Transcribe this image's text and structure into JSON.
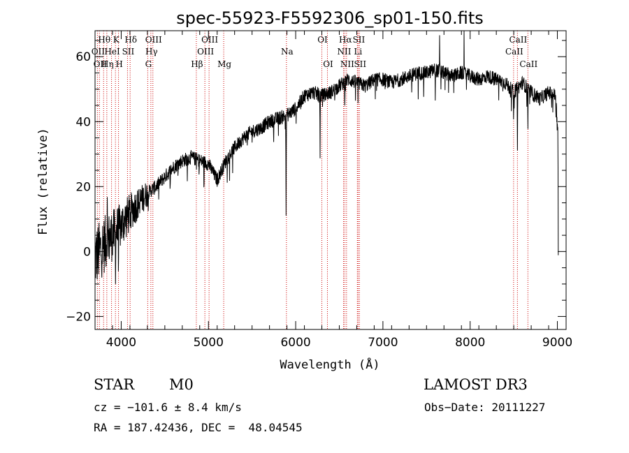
{
  "chart_data": {
    "type": "line",
    "title": "spec-55923-F5592306_sp01-150.fits",
    "xlabel": "Wavelength (Å)",
    "ylabel": "Flux (relative)",
    "xlim": [
      3700,
      9100
    ],
    "ylim": [
      -24,
      68
    ],
    "x_ticks": [
      4000,
      5000,
      6000,
      7000,
      8000,
      9000
    ],
    "y_ticks": [
      -20,
      0,
      20,
      40,
      60
    ],
    "grid": false,
    "line_color": "#000000",
    "marker_color": "#cc0000",
    "spectrum_anchors": {
      "x": [
        3700,
        3800,
        3900,
        4000,
        4100,
        4200,
        4300,
        4400,
        4500,
        4600,
        4700,
        4800,
        4900,
        5000,
        5100,
        5200,
        5300,
        5400,
        5500,
        5600,
        5700,
        5800,
        5900,
        6000,
        6100,
        6200,
        6300,
        6400,
        6500,
        6600,
        6700,
        6800,
        6900,
        7000,
        7100,
        7200,
        7300,
        7400,
        7500,
        7600,
        7700,
        7800,
        7900,
        8000,
        8100,
        8200,
        8300,
        8400,
        8500,
        8600,
        8700,
        8800,
        8900,
        8980,
        9000
      ],
      "y": [
        -2,
        2,
        5,
        8,
        12,
        15,
        18,
        20,
        23,
        26,
        28,
        29,
        28,
        27,
        22,
        28,
        32,
        35,
        37,
        38,
        40,
        41,
        42,
        44,
        48,
        49,
        48,
        49,
        51,
        53,
        52,
        51,
        53,
        53,
        52,
        53,
        54,
        55,
        55,
        56,
        55,
        54,
        55,
        54,
        53,
        54,
        53,
        52,
        49,
        52,
        49,
        47,
        49,
        48,
        38
      ]
    },
    "absorption_features": [
      {
        "x": 3934,
        "depth": -14
      },
      {
        "x": 3969,
        "depth": -10
      },
      {
        "x": 5890,
        "depth": -30
      },
      {
        "x": 6280,
        "depth": -18
      },
      {
        "x": 6563,
        "depth": -6
      },
      {
        "x": 7600,
        "depth": -8
      },
      {
        "x": 8498,
        "depth": -12
      },
      {
        "x": 8542,
        "depth": -20
      },
      {
        "x": 8662,
        "depth": -14
      },
      {
        "x": 9010,
        "depth": -38
      }
    ],
    "emission_spikes": [
      {
        "x": 3840,
        "height": 22
      },
      {
        "x": 7650,
        "height": 10
      },
      {
        "x": 7930,
        "height": 14
      }
    ],
    "line_markers": [
      {
        "x": 3727,
        "label": "OII",
        "row": 2
      },
      {
        "x": 3750,
        "label": "OII",
        "row": 3
      },
      {
        "x": 3798,
        "label": "Hθ",
        "row": 1
      },
      {
        "x": 3835,
        "label": "Hη",
        "row": 3
      },
      {
        "x": 3889,
        "label": "HeI",
        "row": 2
      },
      {
        "x": 3934,
        "label": "K",
        "row": 1
      },
      {
        "x": 3969,
        "label": "H",
        "row": 3
      },
      {
        "x": 4072,
        "label": "SII",
        "row": 2
      },
      {
        "x": 4102,
        "label": "Hδ",
        "row": 1
      },
      {
        "x": 4304,
        "label": "G",
        "row": 3
      },
      {
        "x": 4340,
        "label": "Hγ",
        "row": 2
      },
      {
        "x": 4363,
        "label": "OIII",
        "row": 1
      },
      {
        "x": 4861,
        "label": "Hβ",
        "row": 3
      },
      {
        "x": 4959,
        "label": "OIII",
        "row": 2
      },
      {
        "x": 5007,
        "label": "OIII",
        "row": 1
      },
      {
        "x": 5175,
        "label": "Mg",
        "row": 3
      },
      {
        "x": 5894,
        "label": "Na",
        "row": 2
      },
      {
        "x": 6300,
        "label": "OI",
        "row": 1
      },
      {
        "x": 6364,
        "label": "OI",
        "row": 3
      },
      {
        "x": 6548,
        "label": "NII",
        "row": 2
      },
      {
        "x": 6563,
        "label": "Hα",
        "row": 1
      },
      {
        "x": 6583,
        "label": "NII",
        "row": 3
      },
      {
        "x": 6707,
        "label": "Li",
        "row": 2
      },
      {
        "x": 6716,
        "label": "SII",
        "row": 1
      },
      {
        "x": 6731,
        "label": "SII",
        "row": 3
      },
      {
        "x": 8498,
        "label": "CaII",
        "row": 2
      },
      {
        "x": 8542,
        "label": "CaII",
        "row": 1
      },
      {
        "x": 8662,
        "label": "CaII",
        "row": 3
      }
    ]
  },
  "info": {
    "object_class": "STAR",
    "subclass": "M0",
    "survey": "LAMOST DR3",
    "redshift": "cz = −101.6 ± 8.4 km/s",
    "obs_date": "Obs−Date: 20111227",
    "coords": "RA = 187.42436, DEC =  48.04545"
  }
}
